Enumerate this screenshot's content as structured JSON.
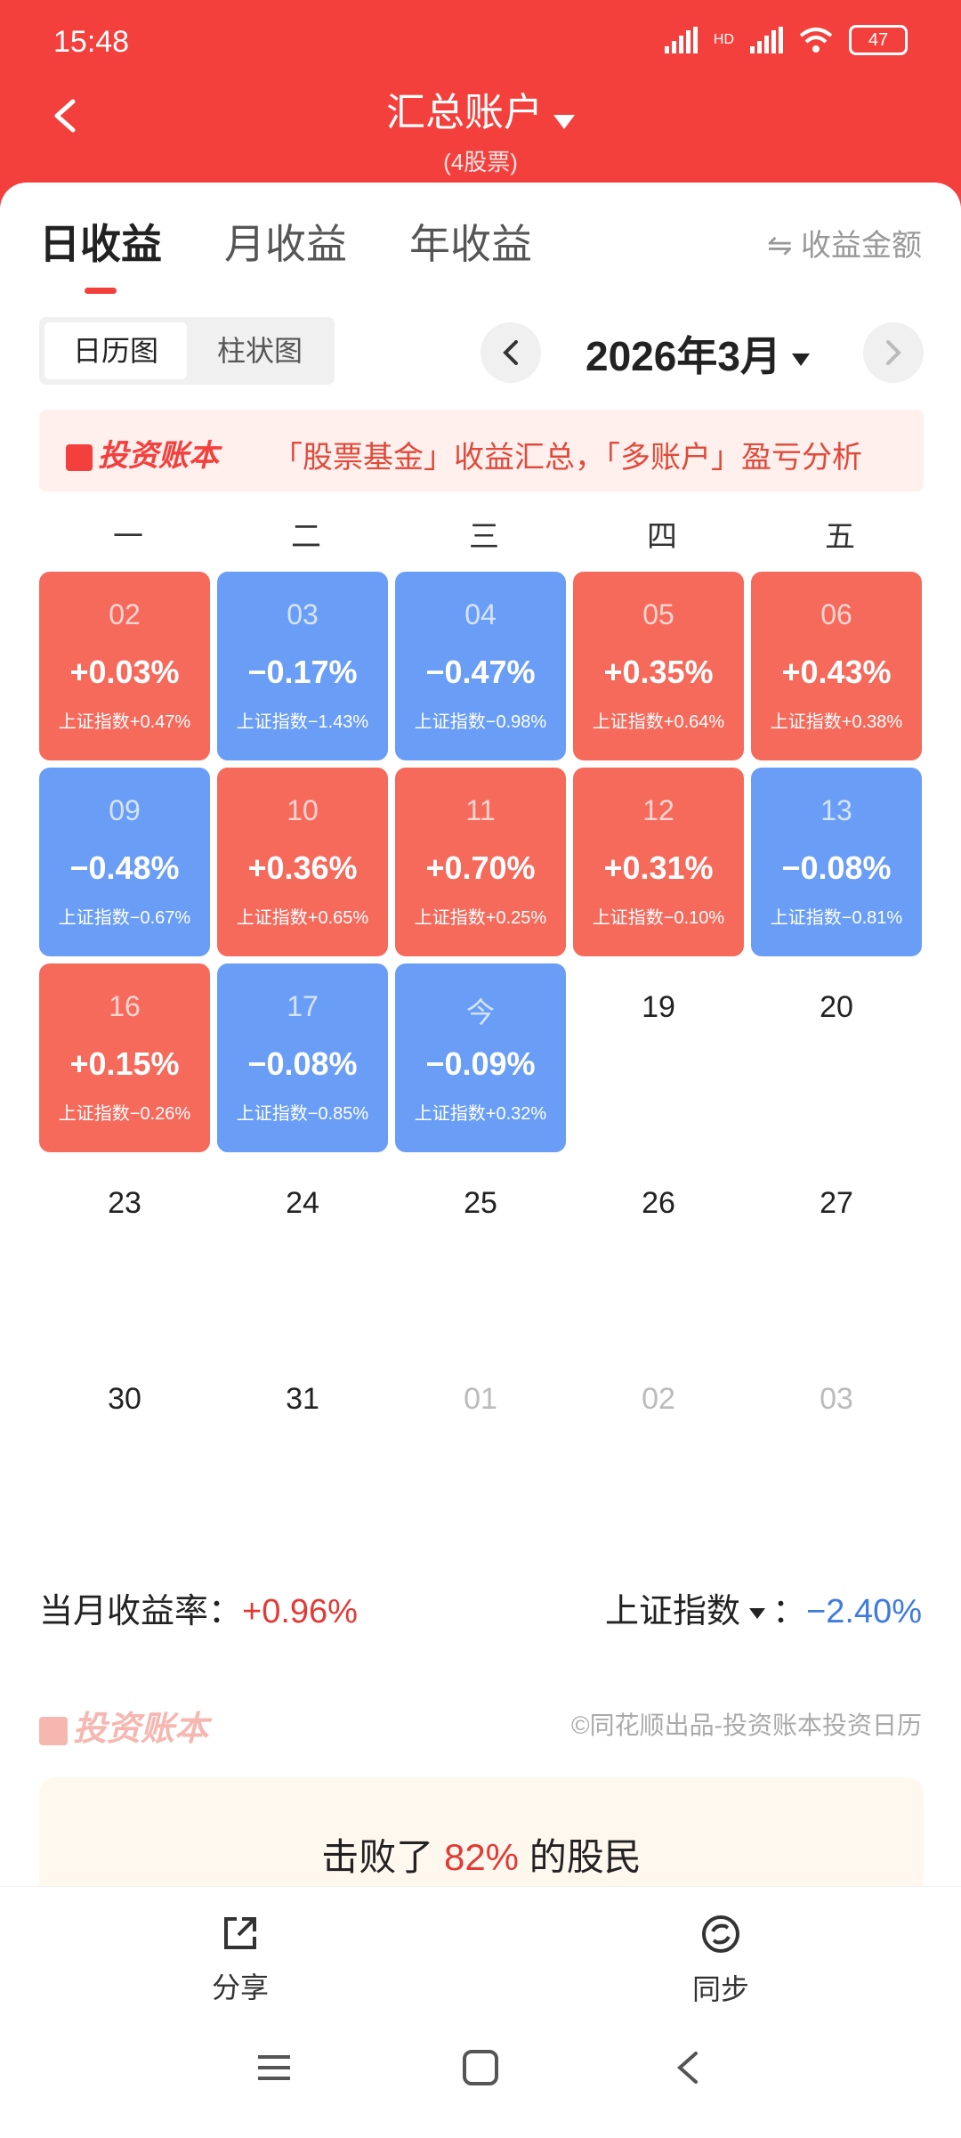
{
  "status": {
    "time": "15:48",
    "battery": "47",
    "network": "HD"
  },
  "header": {
    "title": "汇总账户",
    "subtitle": "(4股票)"
  },
  "tabs": [
    {
      "label": "日收益",
      "active": true
    },
    {
      "label": "月收益",
      "active": false
    },
    {
      "label": "年收益",
      "active": false
    }
  ],
  "amount_toggle": "⇋ 收益金额",
  "view_toggle": {
    "calendar": "日历图",
    "bar": "柱状图"
  },
  "month": "2026年3月",
  "banner": {
    "logo": "投资账本",
    "text": "「股票基金」收益汇总，「多账户」盈亏分析"
  },
  "weekdays": [
    "一",
    "二",
    "三",
    "四",
    "五"
  ],
  "calendar": [
    {
      "day": "02",
      "type": "up",
      "pct": "+0.03%",
      "idx": "上证指数+0.47%"
    },
    {
      "day": "03",
      "type": "down",
      "pct": "−0.17%",
      "idx": "上证指数−1.43%"
    },
    {
      "day": "04",
      "type": "down",
      "pct": "−0.47%",
      "idx": "上证指数−0.98%"
    },
    {
      "day": "05",
      "type": "up",
      "pct": "+0.35%",
      "idx": "上证指数+0.64%"
    },
    {
      "day": "06",
      "type": "up",
      "pct": "+0.43%",
      "idx": "上证指数+0.38%"
    },
    {
      "day": "09",
      "type": "down",
      "pct": "−0.48%",
      "idx": "上证指数−0.67%"
    },
    {
      "day": "10",
      "type": "up",
      "pct": "+0.36%",
      "idx": "上证指数+0.65%"
    },
    {
      "day": "11",
      "type": "up",
      "pct": "+0.70%",
      "idx": "上证指数+0.25%"
    },
    {
      "day": "12",
      "type": "up",
      "pct": "+0.31%",
      "idx": "上证指数−0.10%"
    },
    {
      "day": "13",
      "type": "down",
      "pct": "−0.08%",
      "idx": "上证指数−0.81%"
    },
    {
      "day": "16",
      "type": "up",
      "pct": "+0.15%",
      "idx": "上证指数−0.26%"
    },
    {
      "day": "17",
      "type": "down",
      "pct": "−0.08%",
      "idx": "上证指数−0.85%"
    },
    {
      "day": "今",
      "type": "down",
      "pct": "−0.09%",
      "idx": "上证指数+0.32%"
    },
    {
      "day": "19",
      "type": "plain"
    },
    {
      "day": "20",
      "type": "plain"
    },
    {
      "day": "23",
      "type": "plain"
    },
    {
      "day": "24",
      "type": "plain"
    },
    {
      "day": "25",
      "type": "plain"
    },
    {
      "day": "26",
      "type": "plain"
    },
    {
      "day": "27",
      "type": "plain"
    },
    {
      "day": "30",
      "type": "plain"
    },
    {
      "day": "31",
      "type": "plain"
    },
    {
      "day": "01",
      "type": "other"
    },
    {
      "day": "02",
      "type": "other"
    },
    {
      "day": "03",
      "type": "other"
    }
  ],
  "summary": {
    "label": "当月收益率：",
    "value": "+0.96%",
    "index_label": "上证指数",
    "index_sep": "：",
    "index_value": "−2.40%"
  },
  "footer": {
    "logo": "投资账本",
    "credit": "©同花顺出品-投资账本投资日历"
  },
  "beat": {
    "prefix": "击败了 ",
    "value": "82%",
    "suffix": " 的股民"
  },
  "bottom": {
    "share": "分享",
    "sync": "同步"
  },
  "colors": {
    "header": "#f4403c",
    "up": "#f66a5c",
    "down": "#6a9ef6"
  }
}
